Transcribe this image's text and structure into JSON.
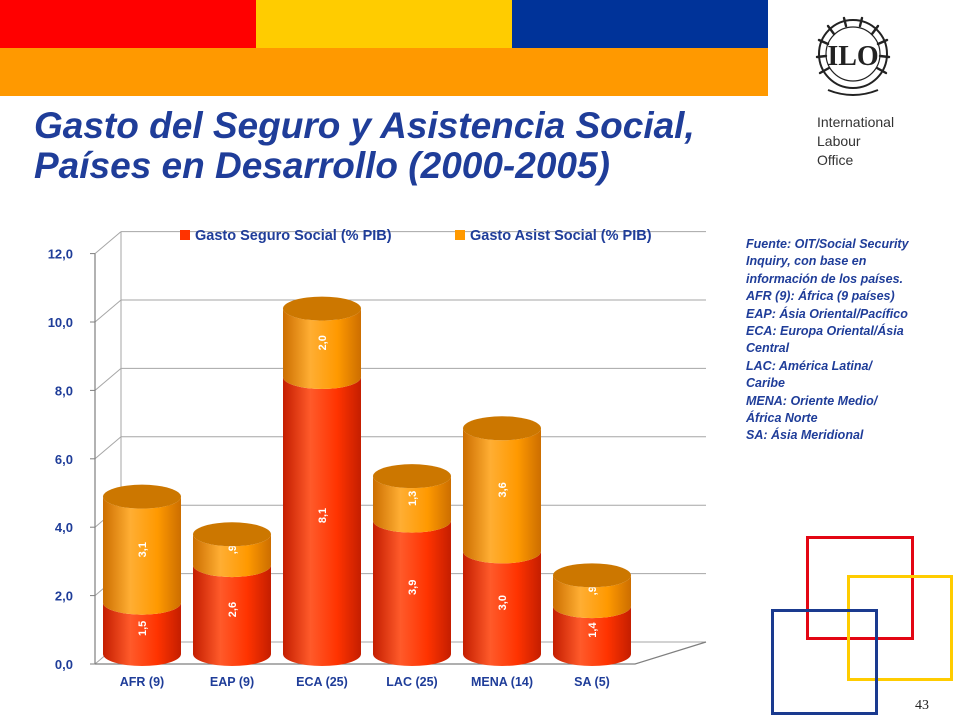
{
  "slide": {
    "title_line1": "Gasto del Seguro y Asistencia Social,",
    "title_line2": "Países en Desarrollo (2000-2005)",
    "org_lines": [
      "International",
      "Labour",
      "Office"
    ],
    "logo_icon": "ilo-logo-icon",
    "page_number": "43",
    "band_colors": [
      "#ff0000",
      "#ffcc00",
      "#003399",
      "#ff9900"
    ]
  },
  "source_note": [
    "Fuente: OIT/Social Security",
    "Inquiry, con base en",
    "información de los países.",
    "AFR (9): África (9 países)",
    "EAP: Ásia Oriental/Pacífico",
    "ECA: Europa Oriental/Ásia",
    "Central",
    "LAC: América Latina/",
    "Caribe",
    "MENA: Oriente Medio/",
    "África Norte",
    "SA: Ásia Meridional"
  ],
  "chart_data": {
    "type": "bar",
    "stacked": true,
    "style": "3d-cylinder",
    "categories": [
      "AFR (9)",
      "EAP (9)",
      "ECA (25)",
      "LAC (25)",
      "MENA (14)",
      "SA (5)"
    ],
    "series": [
      {
        "name": "Gasto Seguro Social (% PIB)",
        "values": [
          1.5,
          2.6,
          8.1,
          3.9,
          3.0,
          1.4
        ],
        "labels": [
          "1,5",
          "2,6",
          "8,1",
          "3,9",
          "3,0",
          "1,4"
        ],
        "color": "#ff3300"
      },
      {
        "name": "Gasto Asist Social (% PIB)",
        "values": [
          3.1,
          0.9,
          2.0,
          1.3,
          3.6,
          0.9
        ],
        "labels": [
          "3,1",
          ",9",
          "2,0",
          "1,3",
          "3,6",
          ",9"
        ],
        "color": "#ff9900"
      }
    ],
    "ylim": [
      0,
      12
    ],
    "yticks": [
      0,
      2,
      4,
      6,
      8,
      10,
      12
    ],
    "ytick_labels": [
      "0,0",
      "2,0",
      "4,0",
      "6,0",
      "8,0",
      "10,0",
      "12,0"
    ],
    "grid": true,
    "legend": "top"
  }
}
